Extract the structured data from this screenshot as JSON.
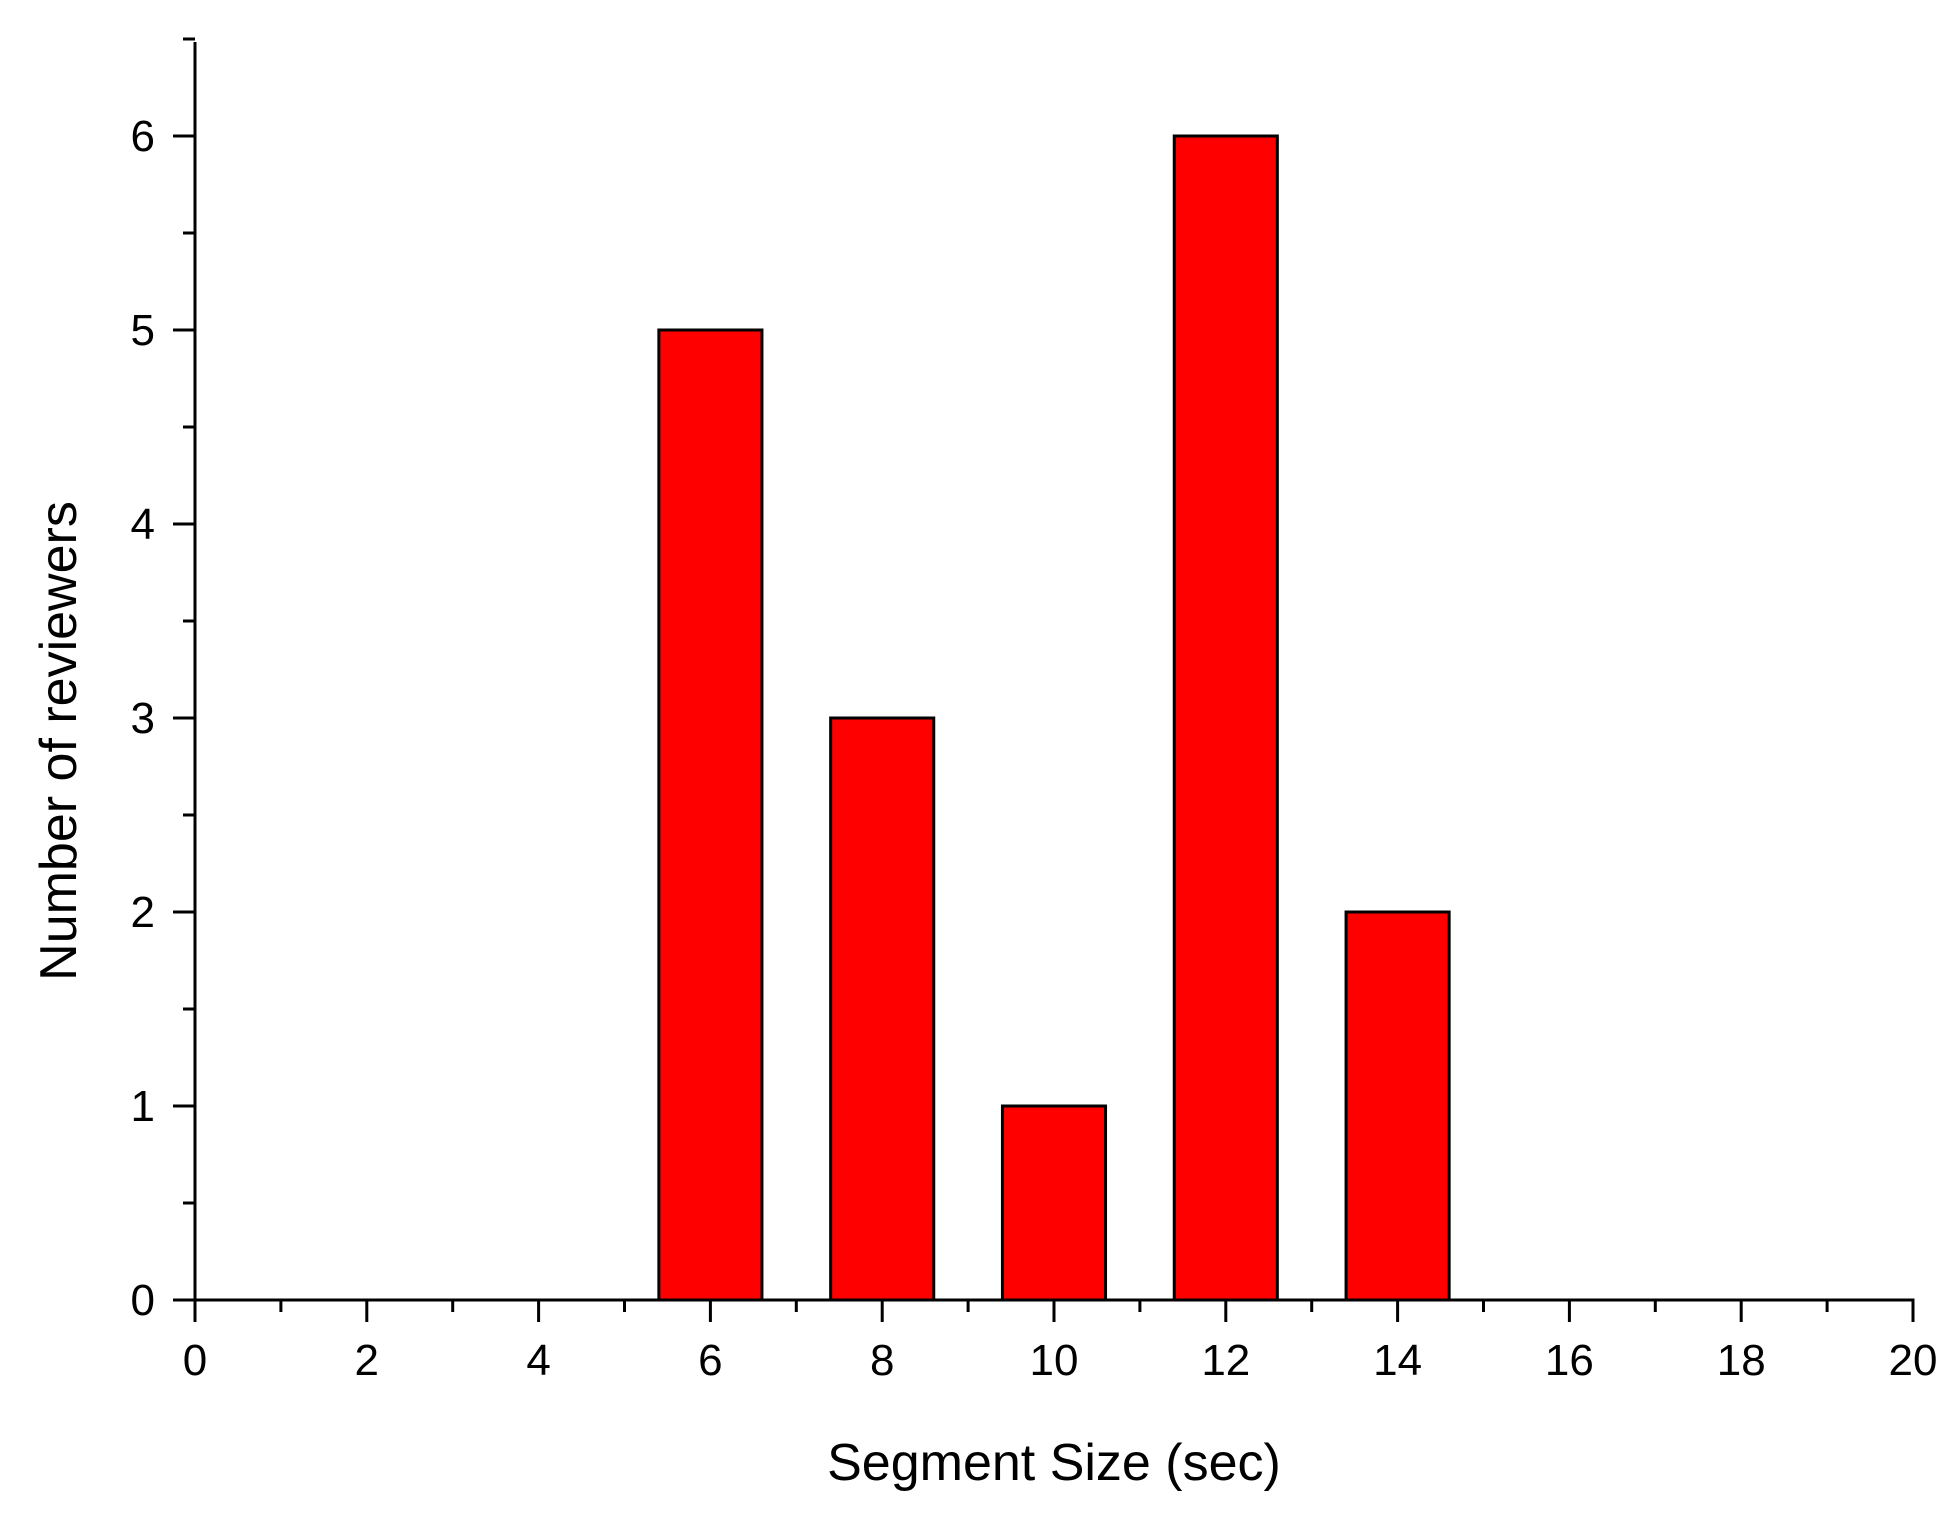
{
  "chart_data": {
    "type": "bar",
    "xlabel": "Segment Size (sec)",
    "ylabel": "Number of reviewers",
    "x": [
      6,
      8,
      10,
      12,
      14
    ],
    "values": [
      5,
      3,
      1,
      6,
      2
    ],
    "bar_width": 1.2,
    "xlim": [
      0,
      20
    ],
    "ylim": [
      0,
      6.5
    ],
    "x_ticks": [
      "0",
      "2",
      "4",
      "6",
      "8",
      "10",
      "12",
      "14",
      "16",
      "18",
      "20"
    ],
    "y_ticks": [
      "0",
      "1",
      "2",
      "3",
      "4",
      "5",
      "6"
    ],
    "x_minor_step": 1,
    "y_minor_step": 0.5,
    "grid": false,
    "legend": "none",
    "bar_color": "#ff0000"
  }
}
